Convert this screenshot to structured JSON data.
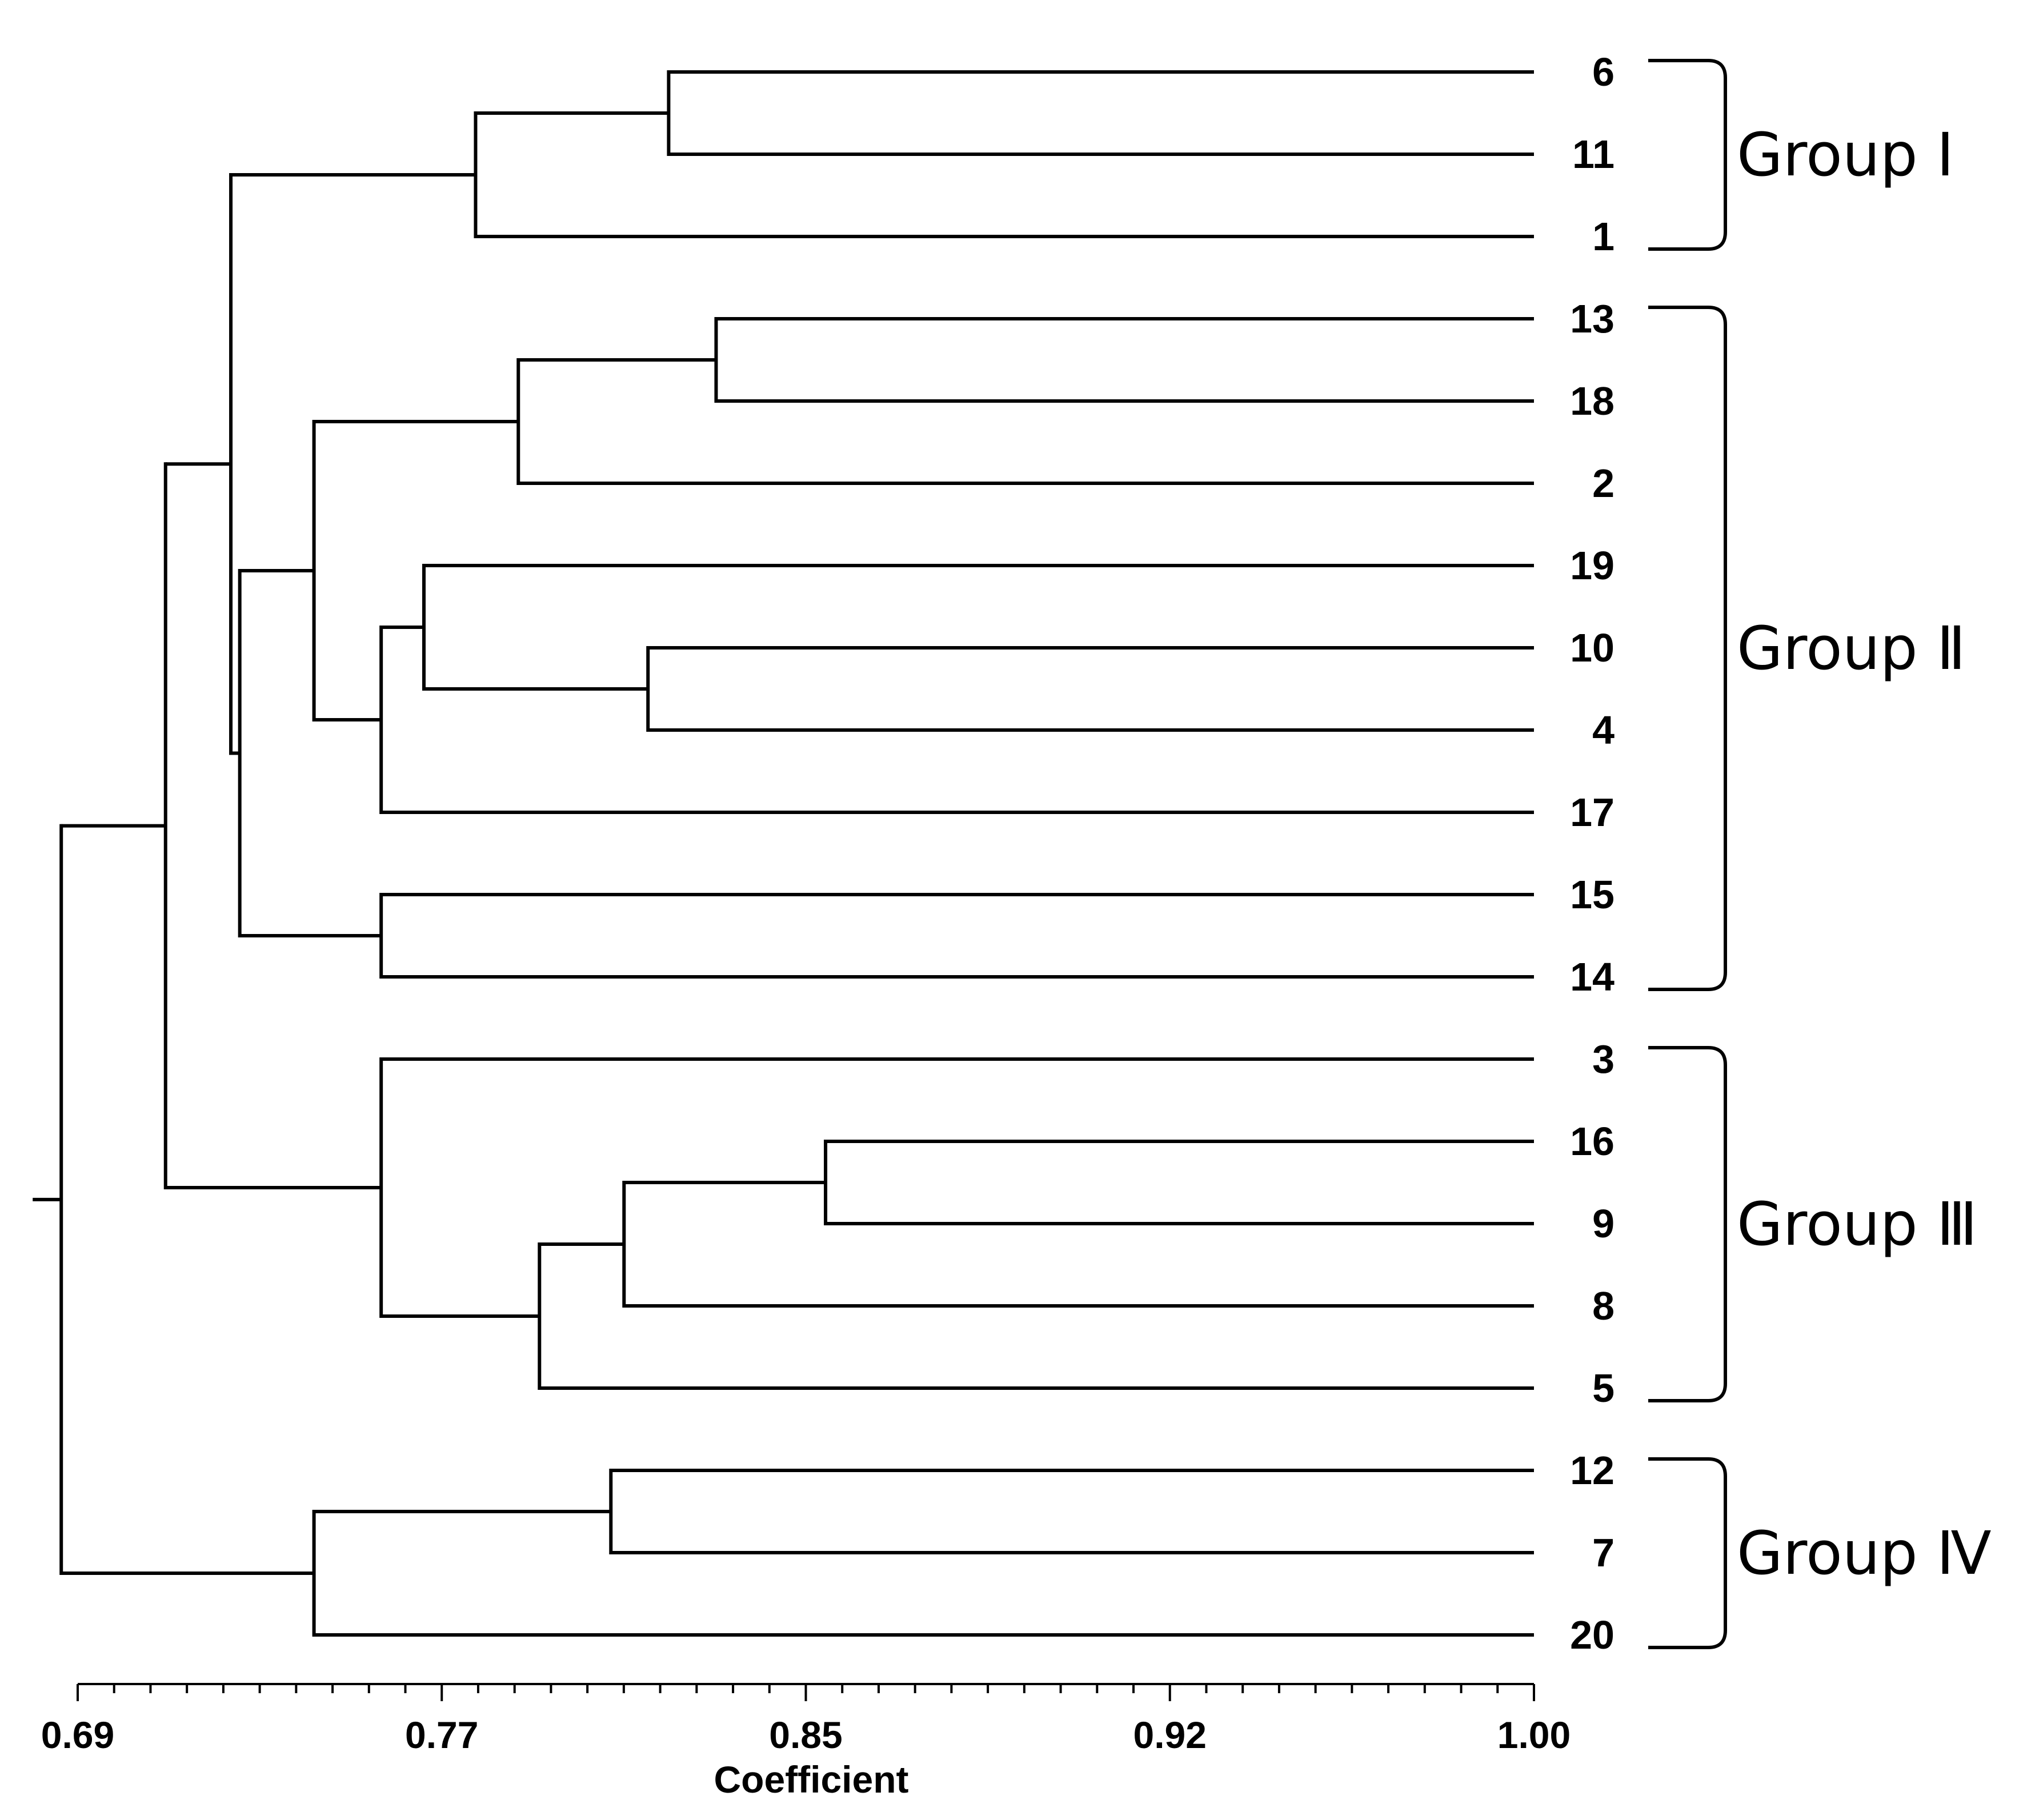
{
  "leaves": [
    "6",
    "11",
    "1",
    "13",
    "18",
    "2",
    "19",
    "10",
    "4",
    "17",
    "15",
    "14",
    "3",
    "16",
    "9",
    "8",
    "5",
    "12",
    "7",
    "20"
  ],
  "clusters": [
    {
      "id": "c6_11",
      "children": [
        "6",
        "11"
      ],
      "similarity": 0.8158
    },
    {
      "id": "cI",
      "children": [
        "c6_11",
        "1"
      ],
      "similarity": 0.7747
    },
    {
      "id": "c13_18",
      "children": [
        "13",
        "18"
      ],
      "similarity": 0.8259
    },
    {
      "id": "c13_18_2",
      "children": [
        "c13_18",
        "2"
      ],
      "similarity": 0.7838
    },
    {
      "id": "c10_4",
      "children": [
        "10",
        "4"
      ],
      "similarity": 0.8114
    },
    {
      "id": "c19_10_4",
      "children": [
        "19",
        "c10_4"
      ],
      "similarity": 0.7637
    },
    {
      "id": "c19_17",
      "children": [
        "c19_10_4",
        "17"
      ],
      "similarity": 0.7546
    },
    {
      "id": "cIIa",
      "children": [
        "c13_18_2",
        "c19_17"
      ],
      "similarity": 0.7403
    },
    {
      "id": "c15_14",
      "children": [
        "15",
        "14"
      ],
      "similarity": 0.7546
    },
    {
      "id": "cII",
      "children": [
        "cIIa",
        "c15_14"
      ],
      "similarity": 0.7245
    },
    {
      "id": "cI_II",
      "children": [
        "cI",
        "cII"
      ],
      "similarity": 0.7226
    },
    {
      "id": "c16_9",
      "children": [
        "16",
        "9"
      ],
      "similarity": 0.8492
    },
    {
      "id": "c16_9_8",
      "children": [
        "c16_9",
        "8"
      ],
      "similarity": 0.8063
    },
    {
      "id": "c16_9_8_5",
      "children": [
        "c16_9_8",
        "5"
      ],
      "similarity": 0.7883
    },
    {
      "id": "cIII",
      "children": [
        "3",
        "c16_9_8_5"
      ],
      "similarity": 0.7546
    },
    {
      "id": "cI_II_III",
      "children": [
        "cI_II",
        "cIII"
      ],
      "similarity": 0.7087
    },
    {
      "id": "c12_7",
      "children": [
        "12",
        "7"
      ],
      "similarity": 0.8035
    },
    {
      "id": "cIV",
      "children": [
        "c12_7",
        "20"
      ],
      "similarity": 0.7403
    },
    {
      "id": "root",
      "children": [
        "cI_II_III",
        "cIV"
      ],
      "similarity": 0.6865
    }
  ],
  "groups": [
    {
      "label": "Group  Ⅰ",
      "members": [
        "6",
        "11",
        "1"
      ]
    },
    {
      "label": "Group  Ⅱ",
      "members": [
        "13",
        "18",
        "2",
        "19",
        "10",
        "4",
        "17",
        "15",
        "14"
      ]
    },
    {
      "label": "Group  Ⅲ",
      "members": [
        "3",
        "16",
        "9",
        "8",
        "5"
      ]
    },
    {
      "label": "Group  Ⅳ",
      "members": [
        "12",
        "7",
        "20"
      ]
    }
  ],
  "axis": {
    "title": "Coefficient",
    "min": 0.69,
    "max": 1.0,
    "tick_labels": [
      "0.69",
      "0.77",
      "0.85",
      "0.92",
      "1.00"
    ],
    "tick_values": [
      0.69,
      0.7675,
      0.845,
      0.9225,
      1.0
    ],
    "minor_ticks": 40
  }
}
